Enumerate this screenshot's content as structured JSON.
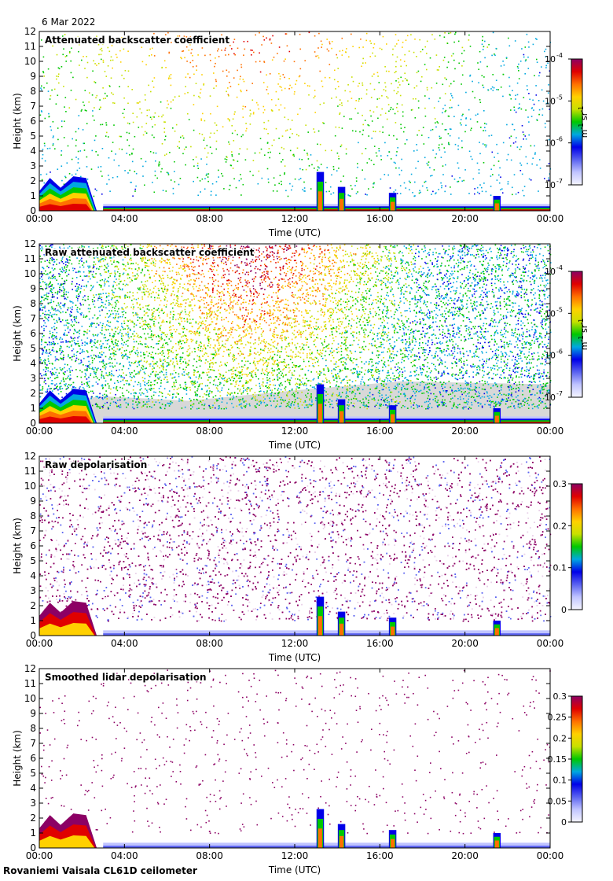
{
  "date": "6 Mar 2022",
  "footer": "Rovaniemi Vaisala CL61D ceilometer",
  "colors": {
    "background": "#ffffff",
    "no_signal_grey": "#d8d8d8",
    "colormap": [
      "#f5f5ff",
      "#c0c4ff",
      "#5a62f0",
      "#0000e8",
      "#00a8e0",
      "#00c800",
      "#c8e000",
      "#ffd000",
      "#ff7000",
      "#e00000",
      "#8c0064"
    ]
  },
  "chart_data": [
    {
      "type": "heatmap",
      "title": "Attenuated backscatter coefficient",
      "xlabel": "Time (UTC)",
      "ylabel": "Height (km)",
      "xticks": [
        "00:00",
        "04:00",
        "08:00",
        "12:00",
        "16:00",
        "20:00",
        "00:00"
      ],
      "xlim_hours": [
        0,
        24
      ],
      "yticks": [
        "0",
        "1",
        "2",
        "3",
        "4",
        "5",
        "6",
        "7",
        "8",
        "9",
        "10",
        "11",
        "12"
      ],
      "ylim_km": [
        0,
        12
      ],
      "colorbar": {
        "scale": "log",
        "range": [
          1e-07,
          0.0001
        ],
        "ticks": [
          {
            "base": "10",
            "exp": "-7"
          },
          {
            "base": "10",
            "exp": "-6"
          },
          {
            "base": "10",
            "exp": "-5"
          },
          {
            "base": "10",
            "exp": "-4"
          }
        ],
        "unit": {
          "m": "m",
          "m_exp": "-1",
          "sr": "sr",
          "sr_exp": "-1"
        }
      },
      "grey_background": false,
      "noise": "sparse"
    },
    {
      "type": "heatmap",
      "title": "Raw attenuated backscatter coefficient",
      "xlabel": "Time (UTC)",
      "ylabel": "Height (km)",
      "xticks": [
        "00:00",
        "04:00",
        "08:00",
        "12:00",
        "16:00",
        "20:00",
        "00:00"
      ],
      "xlim_hours": [
        0,
        24
      ],
      "yticks": [
        "0",
        "1",
        "2",
        "3",
        "4",
        "5",
        "6",
        "7",
        "8",
        "9",
        "10",
        "11",
        "12"
      ],
      "ylim_km": [
        0,
        12
      ],
      "colorbar": {
        "scale": "log",
        "range": [
          1e-07,
          0.0001
        ],
        "ticks": [
          {
            "base": "10",
            "exp": "-7"
          },
          {
            "base": "10",
            "exp": "-6"
          },
          {
            "base": "10",
            "exp": "-5"
          },
          {
            "base": "10",
            "exp": "-4"
          }
        ],
        "unit": {
          "m": "m",
          "m_exp": "-1",
          "sr": "sr",
          "sr_exp": "-1"
        }
      },
      "grey_background": true,
      "noise": "dense-backscatter"
    },
    {
      "type": "heatmap",
      "title": "Raw depolarisation",
      "xlabel": "Time (UTC)",
      "ylabel": "Height (km)",
      "xticks": [
        "00:00",
        "04:00",
        "08:00",
        "12:00",
        "16:00",
        "20:00",
        "00:00"
      ],
      "xlim_hours": [
        0,
        24
      ],
      "yticks": [
        "0",
        "1",
        "2",
        "3",
        "4",
        "5",
        "6",
        "7",
        "8",
        "9",
        "10",
        "11",
        "12"
      ],
      "ylim_km": [
        0,
        12
      ],
      "colorbar": {
        "scale": "linear",
        "range": [
          0,
          0.3
        ],
        "ticks": [
          "0",
          "0.1",
          "0.2",
          "0.3"
        ]
      },
      "grey_background": false,
      "noise": "dense-depolarisation"
    },
    {
      "type": "heatmap",
      "title": "Smoothed lidar depolarisation",
      "xlabel": "Time (UTC)",
      "ylabel": "Height (km)",
      "xticks": [
        "00:00",
        "04:00",
        "08:00",
        "12:00",
        "16:00",
        "20:00",
        "00:00"
      ],
      "xlim_hours": [
        0,
        24
      ],
      "yticks": [
        "0",
        "1",
        "2",
        "3",
        "4",
        "5",
        "6",
        "7",
        "8",
        "9",
        "10",
        "11",
        "12"
      ],
      "ylim_km": [
        0,
        12
      ],
      "colorbar": {
        "scale": "linear",
        "range": [
          0,
          0.3
        ],
        "ticks": [
          "0",
          "0.05",
          "0.1",
          "0.15",
          "0.2",
          "0.25",
          "0.3"
        ]
      },
      "grey_background": false,
      "noise": "sparse-purple"
    }
  ]
}
